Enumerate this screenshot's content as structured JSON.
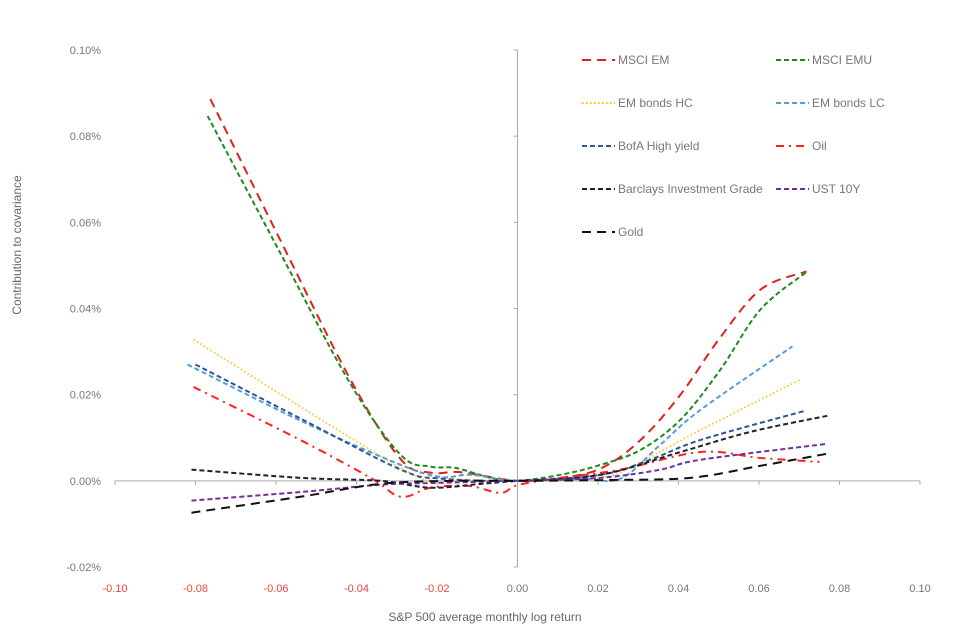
{
  "chart_data": {
    "type": "line",
    "xlabel": "S&P 500 average monthly log return",
    "ylabel": "Contribution to covariance",
    "xlim": [
      -0.1,
      0.1
    ],
    "ylim": [
      -0.02,
      0.1
    ],
    "x_ticks": [
      "-0.10",
      "-0.08",
      "-0.06",
      "-0.04",
      "-0.02",
      "0.00",
      "0.02",
      "0.04",
      "0.06",
      "0.08",
      "0.10"
    ],
    "y_ticks": [
      "-0.02%",
      "0.00%",
      "0.02%",
      "0.04%",
      "0.06%",
      "0.08%",
      "0.10%"
    ],
    "grid": false,
    "legend_position": "top-right",
    "series": [
      {
        "name": "MSCI EM",
        "color": "#e0201b",
        "dash": "dashed-long",
        "points": [
          [
            -0.0763,
            0.0886
          ],
          [
            -0.059,
            0.056
          ],
          [
            -0.0415,
            0.0235
          ],
          [
            -0.029,
            0.005
          ],
          [
            -0.0216,
            0.0019
          ],
          [
            -0.014,
            0.002
          ],
          [
            0,
            0
          ],
          [
            0.011,
            0.0007
          ],
          [
            0.021,
            0.003
          ],
          [
            0.0306,
            0.0095
          ],
          [
            0.0405,
            0.02
          ],
          [
            0.05,
            0.0328
          ],
          [
            0.0604,
            0.0444
          ],
          [
            0.0718,
            0.0486
          ]
        ]
      },
      {
        "name": "MSCI EMU",
        "color": "#1e8a1e",
        "dash": "dashed",
        "points": [
          [
            -0.077,
            0.0847
          ],
          [
            -0.059,
            0.053
          ],
          [
            -0.0415,
            0.0225
          ],
          [
            -0.029,
            0.006
          ],
          [
            -0.0216,
            0.0033
          ],
          [
            -0.0154,
            0.003
          ],
          [
            -0.0067,
            0.0007
          ],
          [
            0,
            0
          ],
          [
            0.0107,
            0.0014
          ],
          [
            0.0206,
            0.0037
          ],
          [
            0.0306,
            0.0072
          ],
          [
            0.0405,
            0.0142
          ],
          [
            0.0504,
            0.0258
          ],
          [
            0.0604,
            0.0398
          ],
          [
            0.072,
            0.0486
          ]
        ]
      },
      {
        "name": "EM bonds HC",
        "color": "#ffc000",
        "dash": "dotted",
        "points": [
          [
            -0.0805,
            0.0328
          ],
          [
            -0.029,
            0.003
          ],
          [
            -0.019,
            0.0007
          ],
          [
            0,
            0
          ],
          [
            0.0206,
            0.0007
          ],
          [
            0.0306,
            0.0044
          ],
          [
            0.0455,
            0.0118
          ],
          [
            0.0703,
            0.0235
          ]
        ]
      },
      {
        "name": "EM bonds LC",
        "color": "#5b9bd5",
        "dash": "dashed",
        "points": [
          [
            -0.082,
            0.027
          ],
          [
            -0.054,
            0.014
          ],
          [
            -0.029,
            0.0037
          ],
          [
            -0.019,
            0.0009
          ],
          [
            -0.0117,
            0.0014
          ],
          [
            0,
            0
          ],
          [
            0.0157,
            0.0005
          ],
          [
            0.0256,
            0.0005
          ],
          [
            0.0355,
            0.0084
          ],
          [
            0.0455,
            0.0165
          ],
          [
            0.0683,
            0.0312
          ]
        ]
      },
      {
        "name": "BofA High yield",
        "color": "#2f5597",
        "dash": "dashed",
        "points": [
          [
            -0.08,
            0.027
          ],
          [
            -0.054,
            0.0145
          ],
          [
            -0.029,
            0.0026
          ],
          [
            -0.019,
            0.0005
          ],
          [
            0,
            0
          ],
          [
            0.0206,
            0.0014
          ],
          [
            0.033,
            0.0049
          ],
          [
            0.0455,
            0.0095
          ],
          [
            0.0716,
            0.0163
          ]
        ]
      },
      {
        "name": "Oil",
        "color": "#ff2020",
        "dash": "dash-dot",
        "points": [
          [
            -0.0805,
            0.0218
          ],
          [
            -0.054,
            0.0095
          ],
          [
            -0.0365,
            0.0007
          ],
          [
            -0.029,
            -0.0037
          ],
          [
            -0.0216,
            -0.0016
          ],
          [
            -0.012,
            -0.0012
          ],
          [
            -0.0042,
            -0.0028
          ],
          [
            0,
            -0.001
          ],
          [
            0.0107,
            0.0007
          ],
          [
            0.0256,
            0.0026
          ],
          [
            0.0455,
            0.0067
          ],
          [
            0.0604,
            0.0053
          ],
          [
            0.075,
            0.0044
          ]
        ]
      },
      {
        "name": "Barclays Investment Grade",
        "color": "#222222",
        "dash": "dashed",
        "points": [
          [
            -0.081,
            0.0026
          ],
          [
            -0.054,
            0.0007
          ],
          [
            -0.034,
            0
          ],
          [
            -0.0216,
            -0.0016
          ],
          [
            -0.009,
            -0.0007
          ],
          [
            0,
            0
          ],
          [
            0.0206,
            0.0014
          ],
          [
            0.0405,
            0.0067
          ],
          [
            0.058,
            0.0114
          ],
          [
            0.077,
            0.0151
          ]
        ]
      },
      {
        "name": "UST 10Y",
        "color": "#7030a0",
        "dash": "dashed",
        "points": [
          [
            -0.081,
            -0.0046
          ],
          [
            -0.054,
            -0.0026
          ],
          [
            -0.034,
            -0.0009
          ],
          [
            -0.021,
            -0.0005
          ],
          [
            0,
            0
          ],
          [
            0.0206,
            0.0007
          ],
          [
            0.0355,
            0.0026
          ],
          [
            0.0455,
            0.0049
          ],
          [
            0.077,
            0.0086
          ]
        ]
      },
      {
        "name": "Gold",
        "color": "#111111",
        "dash": "dashed-long",
        "points": [
          [
            -0.081,
            -0.0074
          ],
          [
            -0.054,
            -0.0037
          ],
          [
            -0.034,
            -0.0007
          ],
          [
            -0.016,
            0
          ],
          [
            0,
            0
          ],
          [
            0.023,
            0.0002
          ],
          [
            0.043,
            0.0007
          ],
          [
            0.0604,
            0.0035
          ],
          [
            0.077,
            0.0063
          ]
        ]
      }
    ]
  }
}
